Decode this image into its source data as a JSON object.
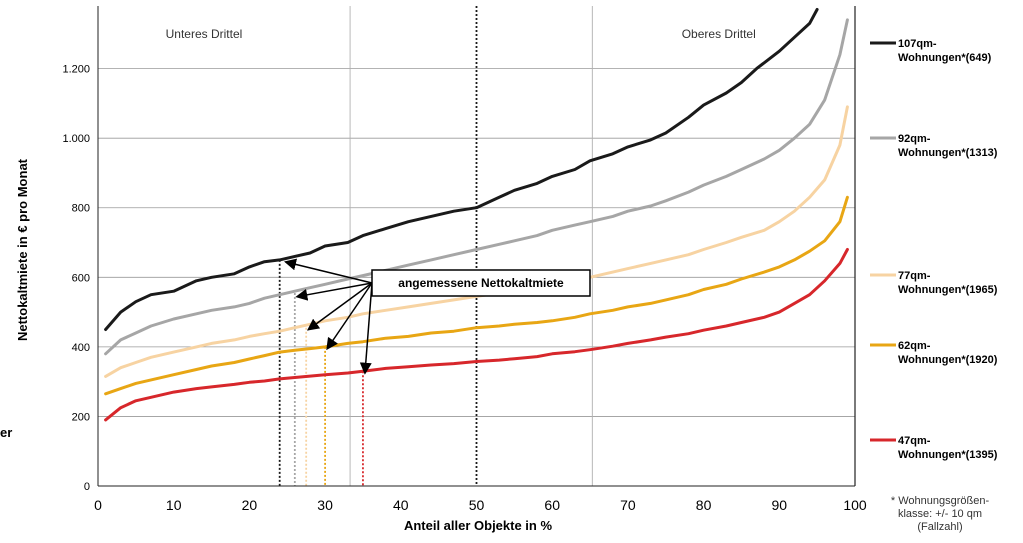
{
  "chart_data": {
    "type": "line",
    "xlabel": "Anteil aller Objekte in %",
    "ylabel": "Nettokaltmiete in € pro Monat",
    "xlim": [
      0,
      100
    ],
    "ylim": [
      0,
      1380
    ],
    "xticks": [
      "0",
      "10",
      "20",
      "30",
      "40",
      "50",
      "60",
      "70",
      "80",
      "90",
      "100"
    ],
    "yticks": [
      {
        "value": 0,
        "label": "0"
      },
      {
        "value": 200,
        "label": "200"
      },
      {
        "value": 400,
        "label": "400"
      },
      {
        "value": 600,
        "label": "600"
      },
      {
        "value": 800,
        "label": "800"
      },
      {
        "value": 1000,
        "label": "1.000"
      },
      {
        "value": 1200,
        "label": "1.200"
      }
    ],
    "grid": "horizontal",
    "region_labels": [
      {
        "text": "Unteres Drittel",
        "x": 14
      },
      {
        "text": "Oberes Drittel",
        "x": 82
      }
    ],
    "region_dividers": [
      33.3,
      65.3
    ],
    "series": [
      {
        "name_line1": "107qm-",
        "name_line2": "Wohnungen*(649)",
        "color": "#1a1a1a",
        "x": [
          1,
          3,
          5,
          7,
          10,
          13,
          15,
          18,
          20,
          22,
          24,
          26,
          28,
          30,
          33,
          35,
          38,
          41,
          44,
          47,
          50,
          53,
          55,
          58,
          60,
          63,
          65,
          68,
          70,
          73,
          75,
          78,
          80,
          83,
          85,
          87,
          90,
          92,
          94,
          95
        ],
        "y": [
          450,
          500,
          530,
          550,
          560,
          590,
          600,
          610,
          630,
          645,
          650,
          660,
          670,
          690,
          700,
          720,
          740,
          760,
          775,
          790,
          800,
          830,
          850,
          870,
          890,
          910,
          935,
          955,
          975,
          995,
          1015,
          1060,
          1095,
          1130,
          1160,
          1200,
          1250,
          1290,
          1330,
          1370
        ]
      },
      {
        "name_line1": "92qm-",
        "name_line2": "Wohnungen*(1313)",
        "color": "#a6a6a6",
        "x": [
          1,
          3,
          5,
          7,
          10,
          13,
          15,
          18,
          20,
          22,
          24,
          26,
          28,
          30,
          33,
          35,
          38,
          41,
          44,
          47,
          50,
          53,
          55,
          58,
          60,
          63,
          65,
          68,
          70,
          73,
          75,
          78,
          80,
          83,
          85,
          88,
          90,
          92,
          94,
          96,
          98,
          99
        ],
        "y": [
          380,
          420,
          440,
          460,
          480,
          495,
          505,
          515,
          525,
          540,
          550,
          560,
          570,
          580,
          595,
          605,
          620,
          635,
          650,
          665,
          680,
          695,
          705,
          720,
          735,
          750,
          760,
          775,
          790,
          805,
          820,
          845,
          865,
          890,
          910,
          940,
          965,
          1000,
          1040,
          1110,
          1240,
          1340
        ]
      },
      {
        "name_line1": "77qm-",
        "name_line2": "Wohnungen*(1965)",
        "color": "#f7d3a2",
        "x": [
          1,
          3,
          5,
          7,
          10,
          13,
          15,
          18,
          20,
          22,
          24,
          26,
          28,
          30,
          33,
          35,
          38,
          41,
          44,
          47,
          50,
          53,
          55,
          58,
          60,
          63,
          65,
          68,
          70,
          73,
          75,
          78,
          80,
          83,
          85,
          88,
          90,
          92,
          94,
          96,
          98,
          99
        ],
        "y": [
          315,
          340,
          355,
          370,
          385,
          400,
          410,
          420,
          430,
          438,
          445,
          455,
          465,
          475,
          485,
          495,
          505,
          515,
          525,
          535,
          545,
          555,
          560,
          570,
          580,
          590,
          600,
          615,
          625,
          640,
          650,
          665,
          680,
          700,
          715,
          735,
          760,
          790,
          830,
          880,
          980,
          1090
        ]
      },
      {
        "name_line1": "62qm-",
        "name_line2": "Wohnungen*(1920)",
        "color": "#e8a614",
        "x": [
          1,
          3,
          5,
          7,
          10,
          13,
          15,
          18,
          20,
          22,
          24,
          26,
          28,
          30,
          33,
          35,
          38,
          41,
          44,
          47,
          50,
          53,
          55,
          58,
          60,
          63,
          65,
          68,
          70,
          73,
          75,
          78,
          80,
          83,
          85,
          88,
          90,
          92,
          94,
          96,
          98,
          99
        ],
        "y": [
          265,
          280,
          295,
          305,
          320,
          335,
          345,
          355,
          365,
          375,
          385,
          390,
          395,
          400,
          410,
          415,
          425,
          430,
          440,
          445,
          455,
          460,
          465,
          470,
          475,
          485,
          495,
          505,
          515,
          525,
          535,
          550,
          565,
          580,
          595,
          615,
          630,
          650,
          675,
          705,
          760,
          830
        ]
      },
      {
        "name_line1": "47qm-",
        "name_line2": "Wohnungen*(1395)",
        "color": "#d7272b",
        "x": [
          1,
          3,
          5,
          7,
          10,
          13,
          15,
          18,
          20,
          22,
          24,
          26,
          28,
          30,
          33,
          35,
          38,
          41,
          44,
          47,
          50,
          53,
          55,
          58,
          60,
          63,
          65,
          68,
          70,
          73,
          75,
          78,
          80,
          83,
          85,
          88,
          90,
          92,
          94,
          96,
          98,
          99
        ],
        "y": [
          190,
          225,
          245,
          255,
          270,
          280,
          285,
          292,
          298,
          302,
          308,
          312,
          316,
          320,
          325,
          330,
          338,
          343,
          348,
          352,
          358,
          362,
          366,
          372,
          380,
          386,
          392,
          402,
          410,
          420,
          428,
          438,
          448,
          460,
          470,
          485,
          500,
          525,
          550,
          590,
          640,
          680
        ]
      }
    ],
    "reference_lines": [
      {
        "x": 24,
        "y": 650,
        "color": "#1a1a1a"
      },
      {
        "x": 26,
        "y": 555,
        "color": "#a6a6a6"
      },
      {
        "x": 27.5,
        "y": 455,
        "color": "#f7d3a2"
      },
      {
        "x": 30,
        "y": 400,
        "color": "#e8a614"
      },
      {
        "x": 35,
        "y": 330,
        "color": "#d7272b"
      },
      {
        "x": 50,
        "y": 1380,
        "color": "#1a1a1a"
      }
    ],
    "annotation": {
      "text": "angemessene Nettokaltmiete",
      "targets": [
        [
          24.5,
          650
        ],
        [
          26,
          550
        ],
        [
          27.5,
          455
        ],
        [
          30,
          400
        ],
        [
          35,
          330
        ]
      ]
    },
    "note_lines": [
      "* Wohnungsgrößen-",
      "klasse: +/- 10 qm",
      "(Fallzahl)"
    ],
    "side_label": "er"
  }
}
